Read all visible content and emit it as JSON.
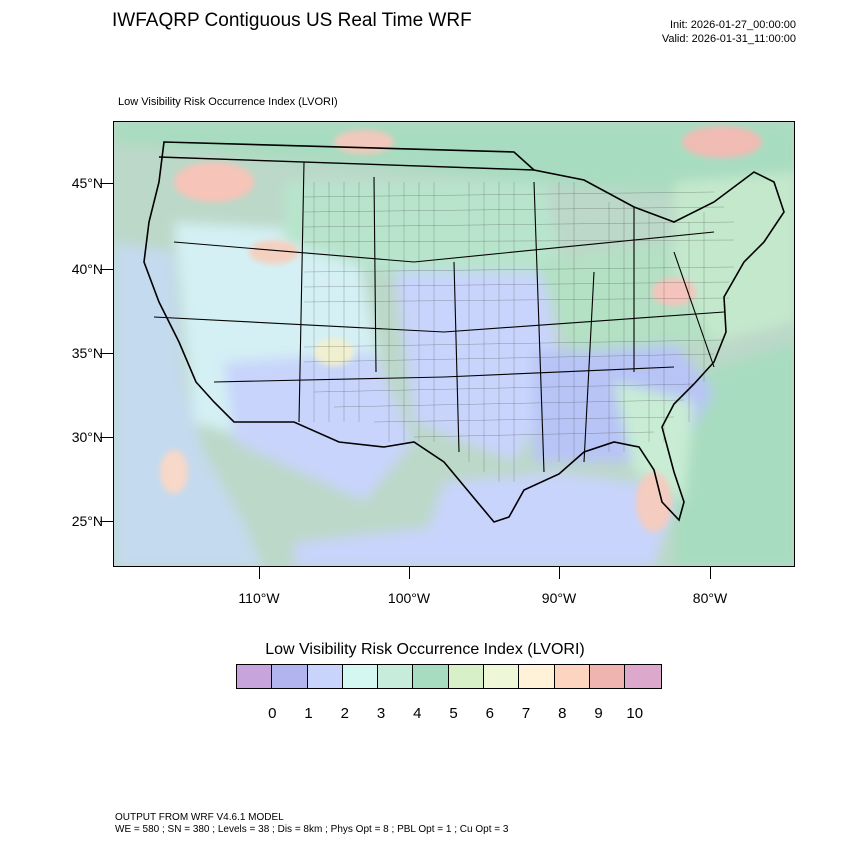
{
  "header": {
    "title": "IWFAQRP Contiguous US Real Time WRF",
    "init": "Init: 2026-01-27_00:00:00",
    "valid": "Valid: 2026-01-31_11:00:00"
  },
  "panel": {
    "title": "Low Visibility Risk Occurrence Index   (LVORI)"
  },
  "axes": {
    "lat_labels": [
      "45°N",
      "40°N",
      "35°N",
      "30°N",
      "25°N"
    ],
    "lon_labels": [
      "110°W",
      "100°W",
      "90°W",
      "80°W"
    ]
  },
  "legend": {
    "title": "Low Visibility Risk Occurrence Index  (LVORI)",
    "colors": [
      "#c8a4dc",
      "#b1b4ee",
      "#c8d4fb",
      "#d4f7f1",
      "#c8ecdc",
      "#a8dcc0",
      "#d8f0c8",
      "#eef8d8",
      "#fff2d8",
      "#fcd4c0",
      "#f0b4b0",
      "#dca8cc"
    ],
    "labels": [
      "0",
      "1",
      "2",
      "3",
      "4",
      "5",
      "6",
      "7",
      "8",
      "9",
      "10"
    ]
  },
  "footer": {
    "line1": "OUTPUT FROM WRF V4.6.1 MODEL",
    "line2": "WE = 580 ; SN = 380 ; Levels = 38 ; Dis = 8km ; Phys Opt = 8 ; PBL Opt = 1 ; Cu Opt = 3"
  }
}
